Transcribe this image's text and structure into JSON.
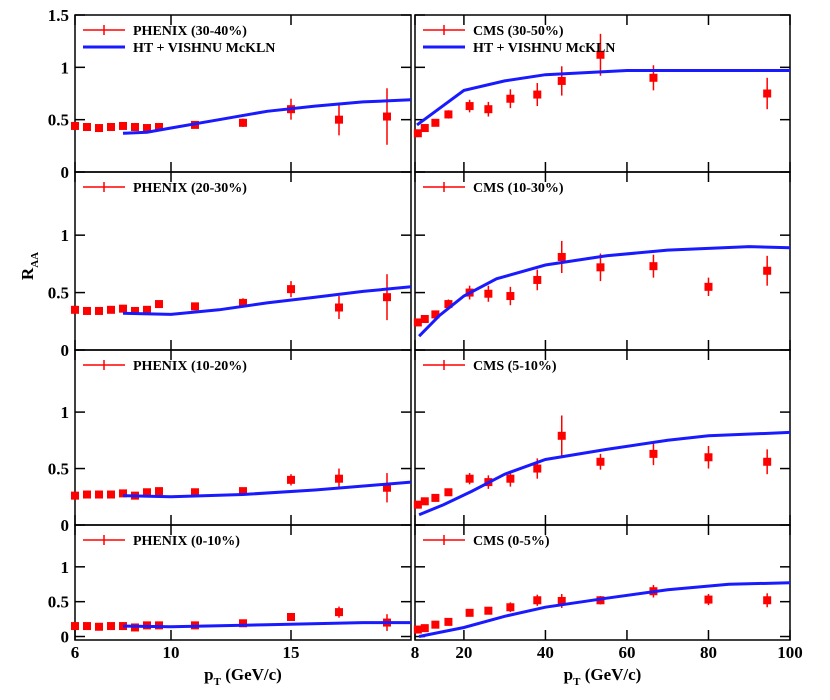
{
  "chart_data": [
    {
      "type": "scatter",
      "xlim": [
        6,
        20
      ],
      "ylim": [
        0,
        1.5
      ],
      "xticks": [
        6,
        10,
        15
      ],
      "yticks": [
        0,
        0.5,
        1,
        1.5
      ],
      "show_xtick_labels": false,
      "show_ytick_labels": true,
      "series": [
        {
          "name": "PHENIX (30-40%)",
          "color": "#ff0000",
          "mode": "markers",
          "x": [
            6,
            6.5,
            7,
            7.5,
            8,
            8.5,
            9,
            9.5,
            11,
            13,
            15,
            17,
            19
          ],
          "values": [
            0.44,
            0.43,
            0.42,
            0.43,
            0.44,
            0.43,
            0.42,
            0.43,
            0.45,
            0.47,
            0.6,
            0.5,
            0.53
          ],
          "errors": [
            0.02,
            0.02,
            0.02,
            0.02,
            0.02,
            0.02,
            0.02,
            0.02,
            0.03,
            0.04,
            0.1,
            0.15,
            0.27
          ]
        },
        {
          "name": "HT + VISHNU McKLN",
          "color": "#1a1aff",
          "mode": "lines",
          "x": [
            8,
            9,
            10,
            12,
            14,
            16,
            18,
            20
          ],
          "values": [
            0.37,
            0.38,
            0.42,
            0.5,
            0.58,
            0.63,
            0.67,
            0.69
          ]
        }
      ]
    },
    {
      "type": "scatter",
      "xlim": [
        8,
        100
      ],
      "ylim": [
        0,
        1.5
      ],
      "xticks": [
        8,
        20,
        40,
        60,
        80,
        100
      ],
      "yticks": [
        0,
        0.5,
        1,
        1.5
      ],
      "show_xtick_labels": false,
      "show_ytick_labels": false,
      "series": [
        {
          "name": "CMS (30-50%)",
          "color": "#ff0000",
          "mode": "markers",
          "x": [
            8.7,
            10.4,
            13,
            16.2,
            21.4,
            26,
            31.4,
            38,
            44,
            53.5,
            66.5,
            94.4
          ],
          "values": [
            0.37,
            0.42,
            0.47,
            0.55,
            0.63,
            0.6,
            0.7,
            0.74,
            0.87,
            1.12,
            0.9,
            0.75
          ],
          "errors": [
            0.02,
            0.03,
            0.03,
            0.04,
            0.06,
            0.07,
            0.09,
            0.11,
            0.14,
            0.2,
            0.12,
            0.15
          ]
        },
        {
          "name": "HT + VISHNU McKLN",
          "color": "#1a1aff",
          "mode": "lines",
          "x": [
            8.5,
            20,
            30,
            40,
            60,
            80,
            100
          ],
          "values": [
            0.45,
            0.78,
            0.87,
            0.93,
            0.97,
            0.97,
            0.97
          ]
        }
      ]
    },
    {
      "type": "scatter",
      "xlim": [
        6,
        20
      ],
      "ylim": [
        0,
        1.55
      ],
      "xticks": [
        6,
        10,
        15
      ],
      "yticks": [
        0,
        0.5,
        1
      ],
      "show_xtick_labels": false,
      "show_ytick_labels": true,
      "y_label": {
        "main": "R",
        "sub": "AA"
      },
      "series": [
        {
          "name": "PHENIX (20-30%)",
          "color": "#ff0000",
          "mode": "markers",
          "x": [
            6,
            6.5,
            7,
            7.5,
            8,
            8.5,
            9,
            9.5,
            11,
            13,
            15,
            17,
            19
          ],
          "values": [
            0.35,
            0.34,
            0.34,
            0.35,
            0.36,
            0.34,
            0.35,
            0.4,
            0.38,
            0.41,
            0.53,
            0.37,
            0.46
          ],
          "errors": [
            0.02,
            0.02,
            0.02,
            0.02,
            0.02,
            0.02,
            0.02,
            0.03,
            0.03,
            0.04,
            0.07,
            0.1,
            0.2
          ]
        },
        {
          "color": "#1a1aff",
          "mode": "lines",
          "x": [
            8,
            10,
            12,
            14,
            16,
            18,
            20
          ],
          "values": [
            0.32,
            0.31,
            0.35,
            0.41,
            0.46,
            0.51,
            0.55
          ]
        }
      ]
    },
    {
      "type": "scatter",
      "xlim": [
        8,
        100
      ],
      "ylim": [
        0,
        1.55
      ],
      "xticks": [
        8,
        20,
        40,
        60,
        80,
        100
      ],
      "yticks": [
        0,
        0.5,
        1
      ],
      "show_xtick_labels": false,
      "show_ytick_labels": false,
      "series": [
        {
          "name": "CMS (10-30%)",
          "color": "#ff0000",
          "mode": "markers",
          "x": [
            8.7,
            10.4,
            13,
            16.2,
            21.4,
            26,
            31.4,
            38,
            44,
            53.5,
            66.5,
            80,
            94.4
          ],
          "values": [
            0.24,
            0.27,
            0.31,
            0.4,
            0.5,
            0.49,
            0.47,
            0.61,
            0.81,
            0.72,
            0.73,
            0.55,
            0.69
          ],
          "errors": [
            0.02,
            0.03,
            0.03,
            0.04,
            0.06,
            0.07,
            0.08,
            0.09,
            0.14,
            0.12,
            0.1,
            0.08,
            0.13
          ]
        },
        {
          "color": "#1a1aff",
          "mode": "lines",
          "x": [
            9,
            14,
            20,
            28,
            40,
            55,
            70,
            90,
            100
          ],
          "values": [
            0.12,
            0.3,
            0.47,
            0.62,
            0.74,
            0.82,
            0.87,
            0.9,
            0.89
          ]
        }
      ]
    },
    {
      "type": "scatter",
      "xlim": [
        6,
        20
      ],
      "ylim": [
        0,
        1.55
      ],
      "xticks": [
        6,
        10,
        15
      ],
      "yticks": [
        0,
        0.5,
        1
      ],
      "show_xtick_labels": false,
      "show_ytick_labels": true,
      "series": [
        {
          "name": "PHENIX  (10-20%)",
          "color": "#ff0000",
          "mode": "markers",
          "x": [
            6,
            6.5,
            7,
            7.5,
            8,
            8.5,
            9,
            9.5,
            11,
            13,
            15,
            17,
            19
          ],
          "values": [
            0.26,
            0.27,
            0.27,
            0.27,
            0.28,
            0.26,
            0.29,
            0.3,
            0.29,
            0.3,
            0.4,
            0.41,
            0.33
          ],
          "errors": [
            0.02,
            0.02,
            0.02,
            0.02,
            0.02,
            0.02,
            0.02,
            0.03,
            0.03,
            0.03,
            0.05,
            0.09,
            0.13
          ]
        },
        {
          "color": "#1a1aff",
          "mode": "lines",
          "x": [
            8,
            10,
            13,
            16,
            20
          ],
          "values": [
            0.26,
            0.25,
            0.27,
            0.31,
            0.38
          ]
        }
      ]
    },
    {
      "type": "scatter",
      "xlim": [
        8,
        100
      ],
      "ylim": [
        0,
        1.55
      ],
      "xticks": [
        8,
        20,
        40,
        60,
        80,
        100
      ],
      "yticks": [
        0,
        0.5,
        1
      ],
      "show_xtick_labels": false,
      "show_ytick_labels": false,
      "series": [
        {
          "name": "CMS (5-10%)",
          "color": "#ff0000",
          "mode": "markers",
          "x": [
            8.7,
            10.4,
            13,
            16.2,
            21.4,
            26,
            31.4,
            38,
            44,
            53.5,
            66.5,
            80,
            94.4
          ],
          "values": [
            0.18,
            0.21,
            0.24,
            0.29,
            0.41,
            0.38,
            0.41,
            0.5,
            0.79,
            0.56,
            0.63,
            0.6,
            0.56
          ],
          "errors": [
            0.02,
            0.02,
            0.03,
            0.03,
            0.05,
            0.06,
            0.07,
            0.09,
            0.18,
            0.07,
            0.1,
            0.1,
            0.11
          ]
        },
        {
          "color": "#1a1aff",
          "mode": "lines",
          "x": [
            9,
            15,
            22,
            30,
            40,
            55,
            70,
            80,
            100
          ],
          "values": [
            0.09,
            0.18,
            0.3,
            0.45,
            0.58,
            0.67,
            0.75,
            0.79,
            0.82
          ]
        }
      ]
    },
    {
      "type": "scatter",
      "xlim": [
        6,
        20
      ],
      "ylim": [
        -0.05,
        1.6
      ],
      "xticks": [
        6,
        10,
        15
      ],
      "yticks": [
        0,
        0.5,
        1
      ],
      "show_xtick_labels": true,
      "show_ytick_labels": true,
      "x_label": {
        "main": "p",
        "sub": "T",
        "rest": " (GeV/c)"
      },
      "series": [
        {
          "name": "PHENIX  (0-10%)",
          "color": "#ff0000",
          "mode": "markers",
          "x": [
            6,
            6.5,
            7,
            7.5,
            8,
            8.5,
            9,
            9.5,
            11,
            13,
            15,
            17,
            19
          ],
          "values": [
            0.15,
            0.15,
            0.14,
            0.15,
            0.15,
            0.13,
            0.16,
            0.16,
            0.16,
            0.19,
            0.28,
            0.35,
            0.2
          ],
          "errors": [
            0.02,
            0.02,
            0.02,
            0.02,
            0.02,
            0.02,
            0.02,
            0.02,
            0.02,
            0.03,
            0.04,
            0.08,
            0.12
          ]
        },
        {
          "color": "#1a1aff",
          "mode": "lines",
          "x": [
            8,
            10,
            14,
            18,
            20
          ],
          "values": [
            0.15,
            0.14,
            0.17,
            0.2,
            0.2
          ]
        }
      ]
    },
    {
      "type": "scatter",
      "xlim": [
        8,
        100
      ],
      "ylim": [
        -0.05,
        1.6
      ],
      "xticks": [
        8,
        20,
        40,
        60,
        80,
        100
      ],
      "yticks": [
        0,
        0.5,
        1
      ],
      "show_xtick_labels": true,
      "show_ytick_labels": false,
      "x_label": {
        "main": "p",
        "sub": "T",
        "rest": " (GeV/c)"
      },
      "series": [
        {
          "name": "CMS (0-5%)",
          "color": "#ff0000",
          "mode": "markers",
          "x": [
            8.7,
            10.4,
            13,
            16.2,
            21.4,
            26,
            31.4,
            38,
            44,
            53.5,
            66.5,
            80,
            94.4
          ],
          "values": [
            0.1,
            0.12,
            0.17,
            0.21,
            0.34,
            0.37,
            0.42,
            0.52,
            0.51,
            0.52,
            0.65,
            0.53,
            0.52
          ],
          "errors": [
            0.02,
            0.02,
            0.02,
            0.03,
            0.04,
            0.05,
            0.07,
            0.08,
            0.1,
            0.06,
            0.09,
            0.08,
            0.1
          ]
        },
        {
          "color": "#1a1aff",
          "mode": "lines",
          "x": [
            9,
            20,
            30,
            40,
            55,
            70,
            85,
            100
          ],
          "values": [
            0,
            0.13,
            0.29,
            0.42,
            0.55,
            0.67,
            0.75,
            0.77
          ]
        }
      ]
    }
  ]
}
